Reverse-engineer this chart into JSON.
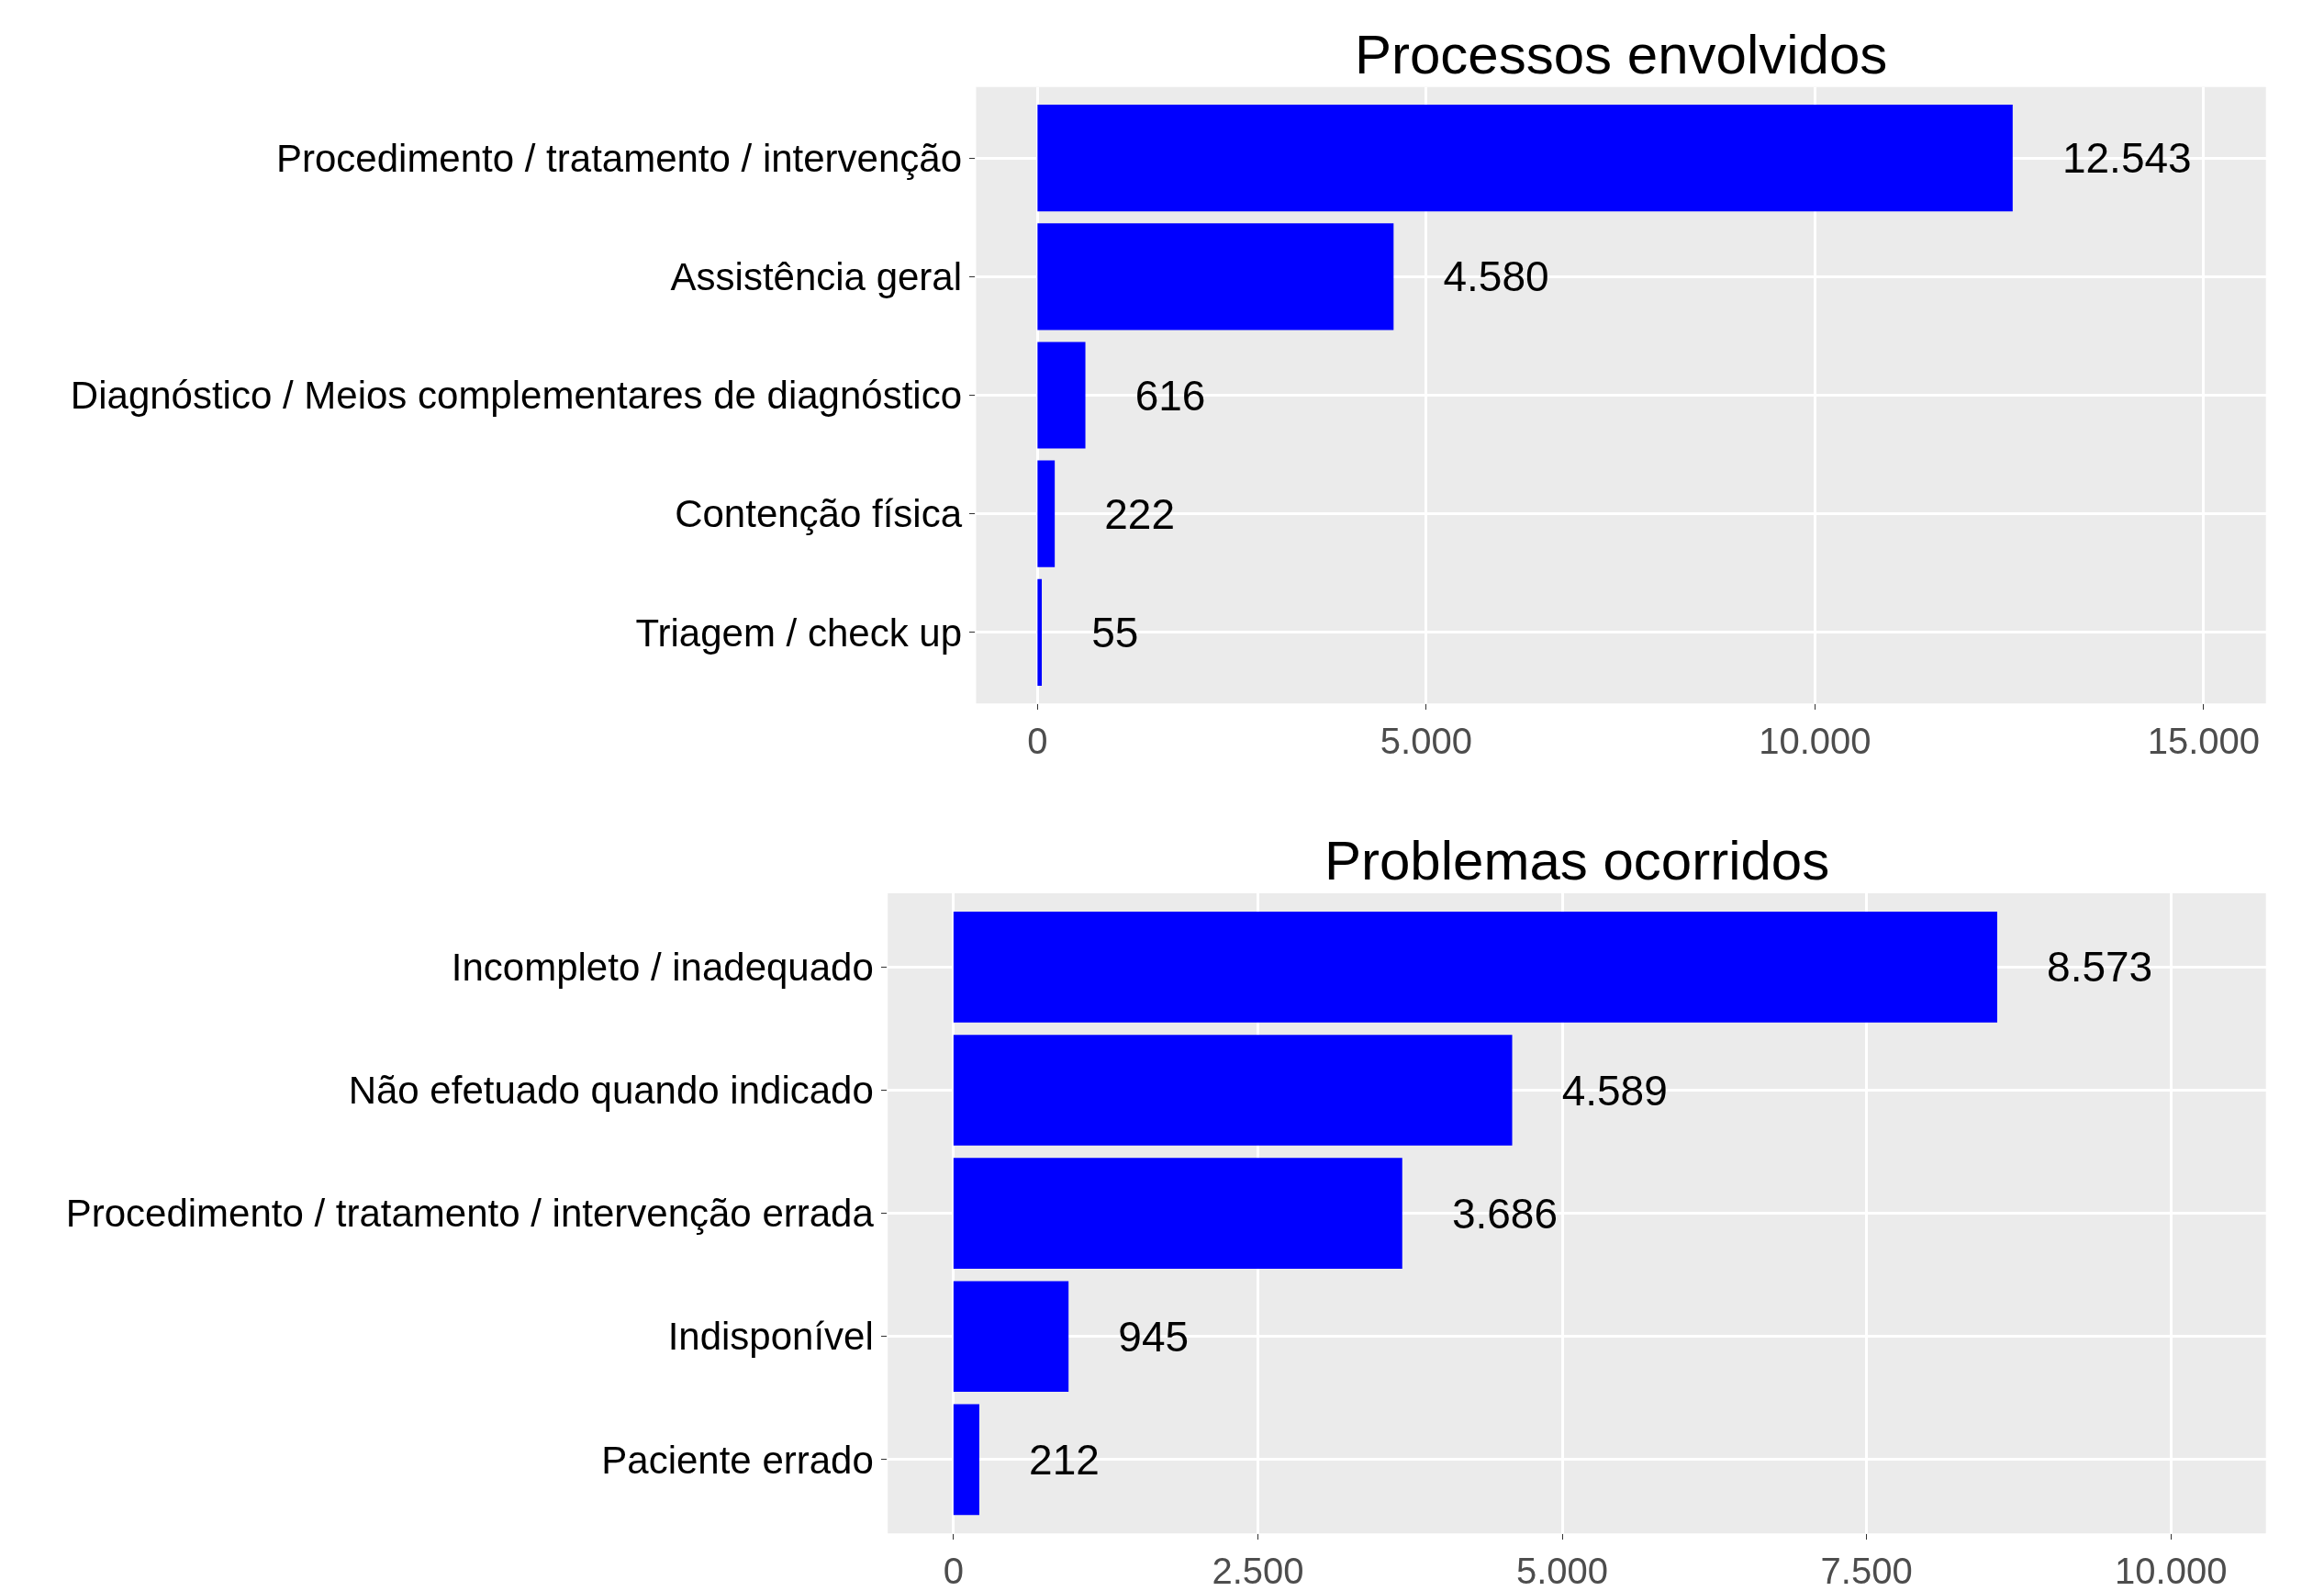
{
  "chart_data": [
    {
      "type": "bar",
      "orientation": "horizontal",
      "title": "Processos envolvidos",
      "categories": [
        "Procedimento / tratamento / intervenção",
        "Assistência geral",
        "Diagnóstico / Meios complementares de diagnóstico",
        "Contenção física",
        "Triagem / check up"
      ],
      "values": [
        12543,
        4580,
        616,
        222,
        55
      ],
      "value_labels": [
        "12.543",
        "4.580",
        "616",
        "222",
        "55"
      ],
      "color": "#0000ff",
      "xlim": [
        -790,
        15800
      ],
      "xticks": [
        0,
        {
          "value": 5000,
          "label": "5.000"
        },
        {
          "value": 10000,
          "label": "10.000"
        },
        {
          "value": 15000,
          "label": "15.000"
        }
      ],
      "grid": true
    },
    {
      "type": "bar",
      "orientation": "horizontal",
      "title": "Problemas ocorridos",
      "categories": [
        "Incompleto / inadequado",
        "Não efetuado quando indicado",
        "Procedimento / tratamento / intervenção errada",
        "Indisponível",
        "Paciente errado"
      ],
      "values": [
        8573,
        4589,
        3686,
        945,
        212
      ],
      "value_labels": [
        "8.573",
        "4.589",
        "3.686",
        "945",
        "212"
      ],
      "color": "#0000ff",
      "xlim": [
        -540,
        10780
      ],
      "xticks": [
        0,
        {
          "value": 2500,
          "label": "2.500"
        },
        {
          "value": 5000,
          "label": "5.000"
        },
        {
          "value": 7500,
          "label": "7.500"
        },
        {
          "value": 10000,
          "label": "10.000"
        }
      ],
      "grid": true
    }
  ]
}
